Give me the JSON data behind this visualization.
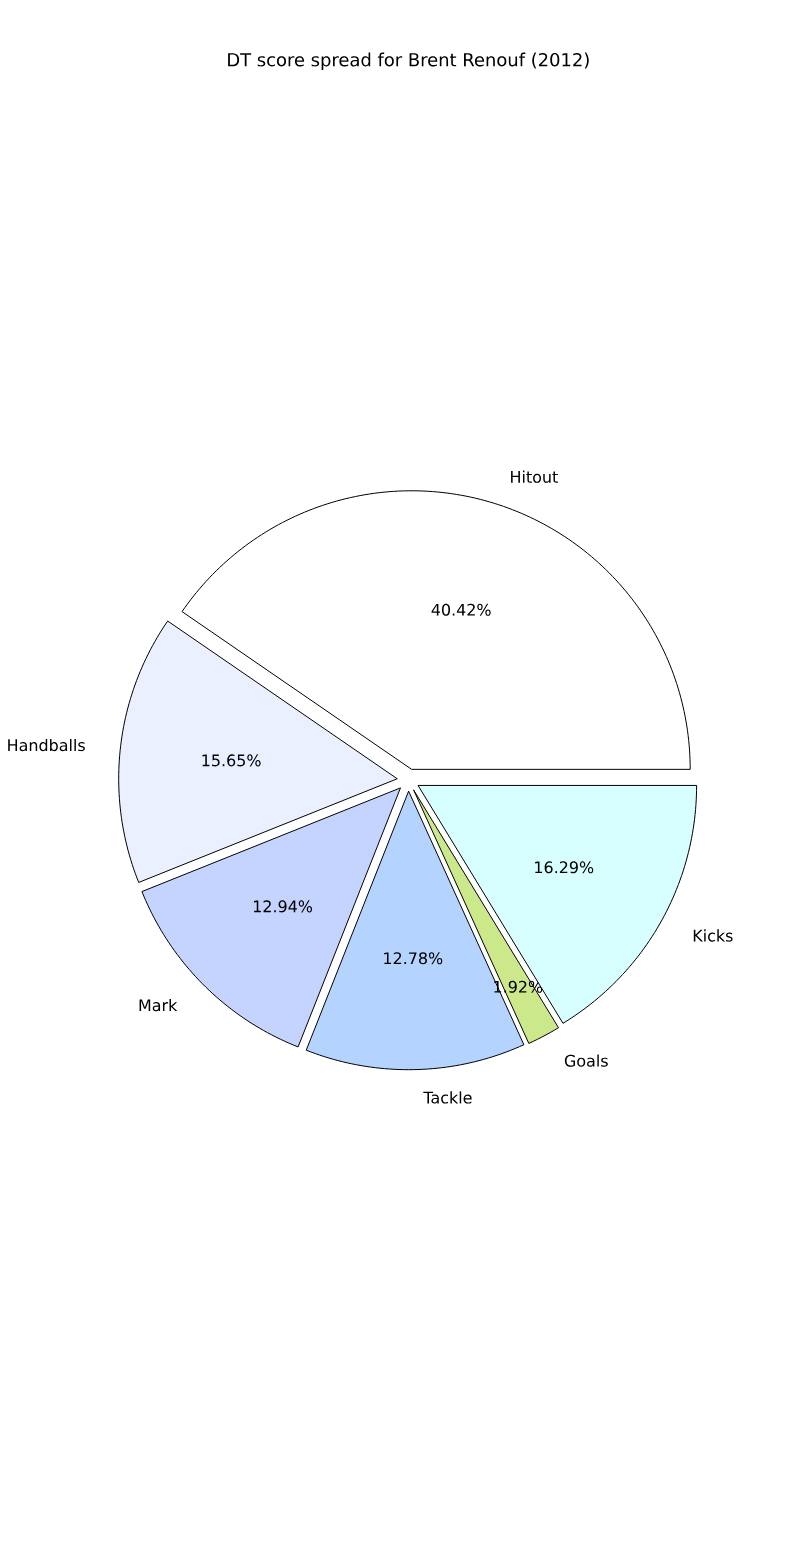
{
  "chart_data": {
    "type": "pie",
    "title": "DT score spread for Brent Renouf (2012)",
    "categories": [
      "Hitout",
      "Handballs",
      "Mark",
      "Tackle",
      "Goals",
      "Kicks"
    ],
    "values": [
      40.42,
      15.65,
      12.94,
      12.78,
      1.92,
      16.29
    ],
    "value_labels": [
      "40.42%",
      "15.65%",
      "12.94%",
      "12.78%",
      "1.92%",
      "16.29%"
    ],
    "colors": [
      "#ffffff",
      "#eaf0ff",
      "#c4d4ff",
      "#b4d4ff",
      "#cbe88a",
      "#d8ffff"
    ]
  }
}
